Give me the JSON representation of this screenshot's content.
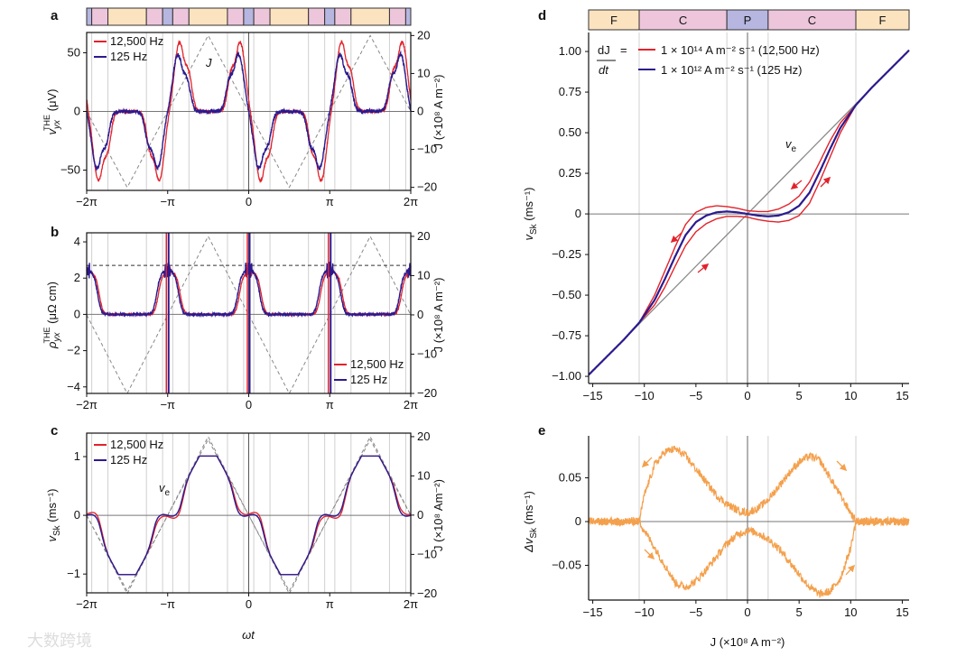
{
  "figure": {
    "panel_labels": {
      "a": "a",
      "b": "b",
      "c": "c",
      "d": "d",
      "e": "e"
    },
    "watermark": "大数跨境"
  },
  "colors": {
    "red": "#e3222b",
    "blue": "#2b1a8f",
    "orange": "#f4a04c",
    "ve_grey": "#888888",
    "grid": "#d0d0d0"
  },
  "phase_bar": {
    "labels": [
      "F",
      "C",
      "P",
      "C",
      "F"
    ],
    "colors": {
      "F": "#fce3c0",
      "C": "#eec6dc",
      "P": "#b6b6e0"
    },
    "boundaries_J": {
      "P_C": 2.5,
      "C_F": 10.5
    }
  },
  "J_waveform": {
    "shape": "triangle",
    "amplitude": 20,
    "period_over_pi": 2
  },
  "chart_data": [
    {
      "panel": "a",
      "type": "line",
      "xlabel": "",
      "ylabel": {
        "main": "v",
        "sub": "yx",
        "sup": "THE",
        "unit": " (μV)"
      },
      "y2label": "J (×10⁸ A m⁻²)",
      "xlim_over_pi": [
        -2,
        2
      ],
      "ylim": [
        -67.3,
        67.3
      ],
      "y2lim": [
        -20.8,
        20.8
      ],
      "xticks": [
        {
          "v": -2,
          "label": "−2π"
        },
        {
          "v": -1,
          "label": "−π"
        },
        {
          "v": 0,
          "label": "0"
        },
        {
          "v": 1,
          "label": "π"
        },
        {
          "v": 2,
          "label": "2π"
        }
      ],
      "yticks": [
        {
          "v": 50,
          "label": "50"
        },
        {
          "v": 0,
          "label": "0"
        },
        {
          "v": -50,
          "label": "−50"
        }
      ],
      "y2ticks": [
        {
          "v": 20,
          "label": "20"
        },
        {
          "v": 10,
          "label": "10"
        },
        {
          "v": 0,
          "label": "0"
        },
        {
          "v": -10,
          "label": "−10"
        },
        {
          "v": -20,
          "label": "−20"
        }
      ],
      "legend": [
        {
          "label": "12,500 Hz",
          "color": "#e3222b"
        },
        {
          "label": "125 Hz",
          "color": "#2b1a8f"
        }
      ],
      "annotation": "J",
      "series_vs_absJ": {
        "absJ": [
          0,
          1,
          2,
          3,
          4,
          5,
          6,
          7,
          8,
          9,
          10,
          11,
          12,
          13,
          14,
          16,
          20
        ],
        "blue_125Hz": [
          0,
          10,
          22,
          35,
          45,
          49,
          46,
          38,
          33,
          31,
          27,
          18,
          9,
          3,
          1,
          0,
          0
        ],
        "red_gain": 1.22,
        "red_lag_J": 0.8,
        "symmetry": "odd"
      }
    },
    {
      "panel": "b",
      "type": "line",
      "ylabel": {
        "main": "ρ",
        "sub": "yx",
        "sup": "THE",
        "unit": " (μΩ cm)"
      },
      "y2label": "J (×10⁸ A m⁻²)",
      "xlim_over_pi": [
        -2,
        2
      ],
      "ylim": [
        -4.36,
        4.5
      ],
      "y2lim": [
        -20.0,
        20.9
      ],
      "xticks": [
        {
          "v": -2,
          "label": "−2π"
        },
        {
          "v": -1,
          "label": "−π"
        },
        {
          "v": 0,
          "label": "0"
        },
        {
          "v": 1,
          "label": "π"
        },
        {
          "v": 2,
          "label": "2π"
        }
      ],
      "yticks": [
        {
          "v": 4,
          "label": "4"
        },
        {
          "v": 2,
          "label": "2"
        },
        {
          "v": 0,
          "label": "0"
        },
        {
          "v": -2,
          "label": "−2"
        },
        {
          "v": -4,
          "label": "−4"
        }
      ],
      "y2ticks": [
        {
          "v": 20,
          "label": "20"
        },
        {
          "v": 10,
          "label": "10"
        },
        {
          "v": 0,
          "label": "0"
        },
        {
          "v": -10,
          "label": "−10"
        },
        {
          "v": -20,
          "label": "−20"
        }
      ],
      "legend": [
        {
          "label": "12,500 Hz",
          "color": "#e3222b"
        },
        {
          "label": "125 Hz",
          "color": "#2b1a8f"
        }
      ],
      "reference_level": 2.7,
      "series_vs_absJ": {
        "absJ": [
          0,
          1,
          2,
          3,
          4,
          5,
          6,
          7,
          8,
          9,
          10,
          20
        ],
        "blue_125Hz": [
          2.5,
          2.45,
          2.35,
          2.2,
          1.95,
          1.4,
          0.75,
          0.3,
          0.08,
          0.02,
          0,
          0
        ],
        "red_lag_J": 0.8,
        "symmetry": "even",
        "spikes_at_over_pi": [
          -1,
          0,
          1
        ]
      }
    },
    {
      "panel": "c",
      "type": "line",
      "xlabel": "ωt",
      "ylabel": {
        "main": "v",
        "sub": "Sk",
        "sup": "",
        "unit": " (ms⁻¹)"
      },
      "y2label": "J (×10⁸ Am⁻²)",
      "xlim_over_pi": [
        -2,
        2
      ],
      "ylim": [
        -1.32,
        1.4
      ],
      "y2lim": [
        -19.8,
        20.9
      ],
      "xticks": [
        {
          "v": -2,
          "label": "−2π"
        },
        {
          "v": -1,
          "label": "−π"
        },
        {
          "v": 0,
          "label": "0"
        },
        {
          "v": 1,
          "label": "π"
        },
        {
          "v": 2,
          "label": "2π"
        }
      ],
      "yticks": [
        {
          "v": 1,
          "label": "1"
        },
        {
          "v": 0,
          "label": "0"
        },
        {
          "v": -1,
          "label": "−1"
        }
      ],
      "y2ticks": [
        {
          "v": 20,
          "label": "20"
        },
        {
          "v": 10,
          "label": "10"
        },
        {
          "v": 0,
          "label": "0"
        },
        {
          "v": -10,
          "label": "−10"
        },
        {
          "v": -20,
          "label": "−20"
        }
      ],
      "legend": [
        {
          "label": "12,500 Hz",
          "color": "#e3222b"
        },
        {
          "label": "125 Hz",
          "color": "#2b1a8f"
        }
      ],
      "annotation": {
        "main": "v",
        "sub": "e"
      }
    },
    {
      "panel": "d",
      "type": "line",
      "xlabel": "",
      "ylabel": {
        "main": "v",
        "sub": "Sk",
        "sup": "",
        "unit": " (ms⁻¹)"
      },
      "xlim": [
        -15.4,
        15.66
      ],
      "ylim": [
        -1.044,
        1.117
      ],
      "xticks": [
        {
          "v": -15,
          "label": "−15"
        },
        {
          "v": -10,
          "label": "−10"
        },
        {
          "v": -5,
          "label": "−5"
        },
        {
          "v": 0,
          "label": "0"
        },
        {
          "v": 5,
          "label": "5"
        },
        {
          "v": 10,
          "label": "10"
        },
        {
          "v": 15,
          "label": "15"
        }
      ],
      "yticks": [
        {
          "v": 1,
          "label": "1.00"
        },
        {
          "v": 0.75,
          "label": "0.75"
        },
        {
          "v": 0.5,
          "label": "0.50"
        },
        {
          "v": 0.25,
          "label": "0.25"
        },
        {
          "v": 0,
          "label": "0"
        },
        {
          "v": -0.25,
          "label": "−0.25"
        },
        {
          "v": -0.5,
          "label": "−0.50"
        },
        {
          "v": -0.75,
          "label": "−0.75"
        },
        {
          "v": -1,
          "label": "−1.00"
        }
      ],
      "legend_prefix": {
        "num": "dJ",
        "den": "dt",
        "eq": "="
      },
      "legend": [
        {
          "label": "1 × 10¹⁴ A m⁻² s⁻¹ (12,500 Hz)",
          "color": "#e3222b"
        },
        {
          "label": "1 × 10¹² A m⁻² s⁻¹ (125 Hz)",
          "color": "#2b1a8f"
        }
      ],
      "annotation": {
        "main": "v",
        "sub": "e"
      },
      "ve_slope": 0.0645,
      "series_vs_absJ": {
        "absJ": [
          0,
          1,
          2,
          3,
          4,
          5,
          6,
          7,
          8,
          9,
          10.5,
          12,
          15.7
        ],
        "blue_vSk": [
          0,
          -0.01,
          -0.015,
          -0.01,
          0.01,
          0.05,
          0.13,
          0.26,
          0.4,
          0.53,
          0.67,
          0.775,
          1.01
        ],
        "red_half_gap": [
          0.02,
          0.025,
          0.03,
          0.04,
          0.05,
          0.06,
          0.065,
          0.06,
          0.05,
          0.03,
          0,
          0,
          0
        ],
        "symmetry": "odd"
      }
    },
    {
      "panel": "e",
      "type": "line",
      "xlabel": "J (×10⁸ A m⁻²)",
      "ylabel": {
        "main": "Δv",
        "sub": "Sk",
        "sup": "",
        "unit": " (ms⁻¹)"
      },
      "xlim": [
        -15.4,
        15.66
      ],
      "ylim": [
        -0.0897,
        0.098
      ],
      "xticks": [
        {
          "v": -15,
          "label": "−15"
        },
        {
          "v": -10,
          "label": "−10"
        },
        {
          "v": -5,
          "label": "−5"
        },
        {
          "v": 0,
          "label": "0"
        },
        {
          "v": 5,
          "label": "5"
        },
        {
          "v": 10,
          "label": "10"
        },
        {
          "v": 15,
          "label": "15"
        }
      ],
      "yticks": [
        {
          "v": 0.05,
          "label": "0.05"
        },
        {
          "v": 0,
          "label": "0"
        },
        {
          "v": -0.05,
          "label": "−0.05"
        }
      ],
      "series": {
        "J": [
          -15.5,
          -12,
          -10.5,
          -10,
          -9,
          -8,
          -7,
          -6,
          -5,
          -4,
          -3,
          -2,
          -1,
          0,
          1,
          2,
          3,
          4,
          5,
          6,
          7,
          8,
          9,
          10,
          10.5,
          12,
          15.7
        ],
        "upper": [
          0,
          0,
          0,
          0.03,
          0.065,
          0.08,
          0.083,
          0.075,
          0.06,
          0.045,
          0.03,
          0.02,
          0.013,
          0.01,
          0.015,
          0.025,
          0.04,
          0.055,
          0.068,
          0.075,
          0.07,
          0.05,
          0.03,
          0.01,
          0,
          0,
          0
        ],
        "lower": [
          0,
          0,
          0,
          -0.01,
          -0.03,
          -0.05,
          -0.07,
          -0.075,
          -0.068,
          -0.055,
          -0.04,
          -0.025,
          -0.015,
          -0.01,
          -0.013,
          -0.02,
          -0.03,
          -0.045,
          -0.06,
          -0.075,
          -0.083,
          -0.08,
          -0.065,
          -0.03,
          0,
          0,
          0
        ]
      }
    }
  ]
}
